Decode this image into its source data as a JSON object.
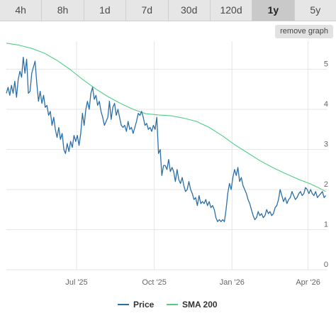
{
  "tabs": [
    {
      "label": "4h"
    },
    {
      "label": "8h"
    },
    {
      "label": "1d"
    },
    {
      "label": "7d"
    },
    {
      "label": "30d"
    },
    {
      "label": "120d"
    },
    {
      "label": "1y"
    },
    {
      "label": "5y"
    }
  ],
  "active_tab": "1y",
  "remove_button": "remove graph",
  "colors": {
    "price": "#2c6fa8",
    "sma": "#4fcf86",
    "grid": "#e6e6e6"
  },
  "chart_data": {
    "type": "line",
    "x_ticks": [
      {
        "label": "Jul '25",
        "t": 83
      },
      {
        "label": "Oct '25",
        "t": 175
      },
      {
        "label": "Jan '26",
        "t": 267
      },
      {
        "label": "Apr '26",
        "t": 357
      }
    ],
    "y_ticks": [
      0,
      1,
      2,
      3,
      4,
      5
    ],
    "ylim": [
      0,
      5.7
    ],
    "xlim": [
      0,
      380
    ],
    "grid": true,
    "legend_position": "bottom",
    "series": [
      {
        "name": "Price",
        "color_key": "price",
        "points": [
          [
            0,
            4.4
          ],
          [
            2,
            4.55
          ],
          [
            4,
            4.35
          ],
          [
            6,
            4.6
          ],
          [
            8,
            4.4
          ],
          [
            10,
            4.7
          ],
          [
            12,
            4.3
          ],
          [
            14,
            4.75
          ],
          [
            16,
            4.95
          ],
          [
            18,
            4.8
          ],
          [
            20,
            5.3
          ],
          [
            22,
            4.9
          ],
          [
            24,
            5.25
          ],
          [
            26,
            4.4
          ],
          [
            28,
            4.45
          ],
          [
            30,
            4.9
          ],
          [
            32,
            5.05
          ],
          [
            34,
            5.2
          ],
          [
            36,
            4.65
          ],
          [
            38,
            4.2
          ],
          [
            40,
            4.45
          ],
          [
            42,
            4.15
          ],
          [
            44,
            4.35
          ],
          [
            46,
            4.05
          ],
          [
            48,
            4.1
          ],
          [
            50,
            3.85
          ],
          [
            52,
            3.95
          ],
          [
            54,
            3.6
          ],
          [
            56,
            3.8
          ],
          [
            58,
            3.5
          ],
          [
            60,
            3.3
          ],
          [
            62,
            3.55
          ],
          [
            64,
            3.25
          ],
          [
            66,
            3.4
          ],
          [
            68,
            3.0
          ],
          [
            70,
            2.9
          ],
          [
            72,
            3.15
          ],
          [
            74,
            2.95
          ],
          [
            76,
            3.2
          ],
          [
            78,
            3.05
          ],
          [
            80,
            3.35
          ],
          [
            82,
            3.2
          ],
          [
            84,
            3.35
          ],
          [
            86,
            3.1
          ],
          [
            88,
            3.4
          ],
          [
            90,
            3.9
          ],
          [
            92,
            3.6
          ],
          [
            94,
            4.0
          ],
          [
            96,
            4.2
          ],
          [
            98,
            4.0
          ],
          [
            100,
            4.4
          ],
          [
            102,
            4.55
          ],
          [
            104,
            4.25
          ],
          [
            106,
            4.35
          ],
          [
            108,
            4.1
          ],
          [
            110,
            4.2
          ],
          [
            112,
            3.95
          ],
          [
            114,
            3.8
          ],
          [
            116,
            3.6
          ],
          [
            118,
            3.7
          ],
          [
            120,
            3.8
          ],
          [
            122,
            4.2
          ],
          [
            124,
            3.75
          ],
          [
            126,
            4.05
          ],
          [
            128,
            4.15
          ],
          [
            130,
            3.85
          ],
          [
            132,
            4.0
          ],
          [
            134,
            3.8
          ],
          [
            136,
            3.6
          ],
          [
            138,
            3.55
          ],
          [
            140,
            3.6
          ],
          [
            142,
            3.45
          ],
          [
            144,
            3.7
          ],
          [
            146,
            3.5
          ],
          [
            148,
            3.55
          ],
          [
            150,
            3.4
          ],
          [
            152,
            3.55
          ],
          [
            154,
            3.7
          ],
          [
            156,
            3.9
          ],
          [
            158,
            3.85
          ],
          [
            160,
            3.95
          ],
          [
            162,
            3.8
          ],
          [
            164,
            3.6
          ],
          [
            166,
            3.65
          ],
          [
            168,
            3.5
          ],
          [
            170,
            3.55
          ],
          [
            172,
            3.45
          ],
          [
            174,
            3.6
          ],
          [
            176,
            3.5
          ],
          [
            178,
            3.8
          ],
          [
            180,
            2.9
          ],
          [
            182,
            3.0
          ],
          [
            184,
            2.35
          ],
          [
            186,
            2.6
          ],
          [
            188,
            2.6
          ],
          [
            190,
            2.5
          ],
          [
            192,
            2.75
          ],
          [
            194,
            2.45
          ],
          [
            196,
            2.55
          ],
          [
            198,
            2.45
          ],
          [
            200,
            2.2
          ],
          [
            202,
            2.5
          ],
          [
            204,
            2.25
          ],
          [
            206,
            2.15
          ],
          [
            208,
            2.3
          ],
          [
            210,
            2.1
          ],
          [
            212,
            1.95
          ],
          [
            214,
            2.0
          ],
          [
            216,
            2.2
          ],
          [
            218,
            2.0
          ],
          [
            220,
            1.9
          ],
          [
            222,
            1.75
          ],
          [
            224,
            1.8
          ],
          [
            226,
            1.6
          ],
          [
            228,
            1.85
          ],
          [
            230,
            1.65
          ],
          [
            232,
            1.7
          ],
          [
            234,
            1.65
          ],
          [
            236,
            1.75
          ],
          [
            238,
            1.6
          ],
          [
            240,
            1.7
          ],
          [
            242,
            1.55
          ],
          [
            244,
            1.6
          ],
          [
            246,
            1.5
          ],
          [
            248,
            1.3
          ],
          [
            250,
            1.2
          ],
          [
            252,
            1.25
          ],
          [
            254,
            1.2
          ],
          [
            256,
            1.25
          ],
          [
            258,
            1.2
          ],
          [
            260,
            1.5
          ],
          [
            262,
            1.9
          ],
          [
            264,
            2.15
          ],
          [
            266,
            2.0
          ],
          [
            268,
            2.3
          ],
          [
            270,
            2.5
          ],
          [
            272,
            2.35
          ],
          [
            274,
            2.55
          ],
          [
            276,
            2.2
          ],
          [
            278,
            2.3
          ],
          [
            280,
            2.1
          ],
          [
            282,
            2.0
          ],
          [
            284,
            1.9
          ],
          [
            286,
            1.75
          ],
          [
            288,
            1.65
          ],
          [
            290,
            1.5
          ],
          [
            292,
            1.35
          ],
          [
            294,
            1.25
          ],
          [
            296,
            1.3
          ],
          [
            298,
            1.45
          ],
          [
            300,
            1.35
          ],
          [
            302,
            1.4
          ],
          [
            304,
            1.3
          ],
          [
            306,
            1.35
          ],
          [
            308,
            1.5
          ],
          [
            310,
            1.4
          ],
          [
            312,
            1.45
          ],
          [
            314,
            1.35
          ],
          [
            316,
            1.4
          ],
          [
            318,
            1.55
          ],
          [
            320,
            1.6
          ],
          [
            322,
            1.75
          ],
          [
            324,
            2.0
          ],
          [
            326,
            1.85
          ],
          [
            328,
            1.7
          ],
          [
            330,
            1.8
          ],
          [
            332,
            1.65
          ],
          [
            334,
            1.75
          ],
          [
            336,
            1.8
          ],
          [
            338,
            1.95
          ],
          [
            340,
            1.85
          ],
          [
            342,
            1.75
          ],
          [
            344,
            1.8
          ],
          [
            346,
            1.9
          ],
          [
            348,
            1.95
          ],
          [
            350,
            1.85
          ],
          [
            352,
            1.9
          ],
          [
            354,
            2.05
          ],
          [
            356,
            2.0
          ],
          [
            358,
            1.9
          ],
          [
            360,
            2.0
          ],
          [
            362,
            1.9
          ],
          [
            364,
            1.85
          ],
          [
            366,
            1.95
          ],
          [
            368,
            1.8
          ],
          [
            370,
            1.85
          ],
          [
            372,
            1.9
          ],
          [
            374,
            1.95
          ],
          [
            376,
            1.8
          ],
          [
            378,
            1.85
          ]
        ]
      },
      {
        "name": "SMA 200",
        "color_key": "sma",
        "points": [
          [
            0,
            5.65
          ],
          [
            15,
            5.6
          ],
          [
            30,
            5.52
          ],
          [
            45,
            5.4
          ],
          [
            60,
            5.22
          ],
          [
            75,
            5.0
          ],
          [
            90,
            4.75
          ],
          [
            105,
            4.52
          ],
          [
            120,
            4.32
          ],
          [
            135,
            4.15
          ],
          [
            150,
            4.0
          ],
          [
            165,
            3.89
          ],
          [
            180,
            3.86
          ],
          [
            195,
            3.84
          ],
          [
            210,
            3.78
          ],
          [
            225,
            3.7
          ],
          [
            240,
            3.55
          ],
          [
            255,
            3.35
          ],
          [
            270,
            3.12
          ],
          [
            285,
            2.92
          ],
          [
            300,
            2.72
          ],
          [
            315,
            2.55
          ],
          [
            330,
            2.4
          ],
          [
            345,
            2.26
          ],
          [
            360,
            2.14
          ],
          [
            370,
            2.04
          ],
          [
            378,
            1.95
          ]
        ]
      }
    ]
  }
}
